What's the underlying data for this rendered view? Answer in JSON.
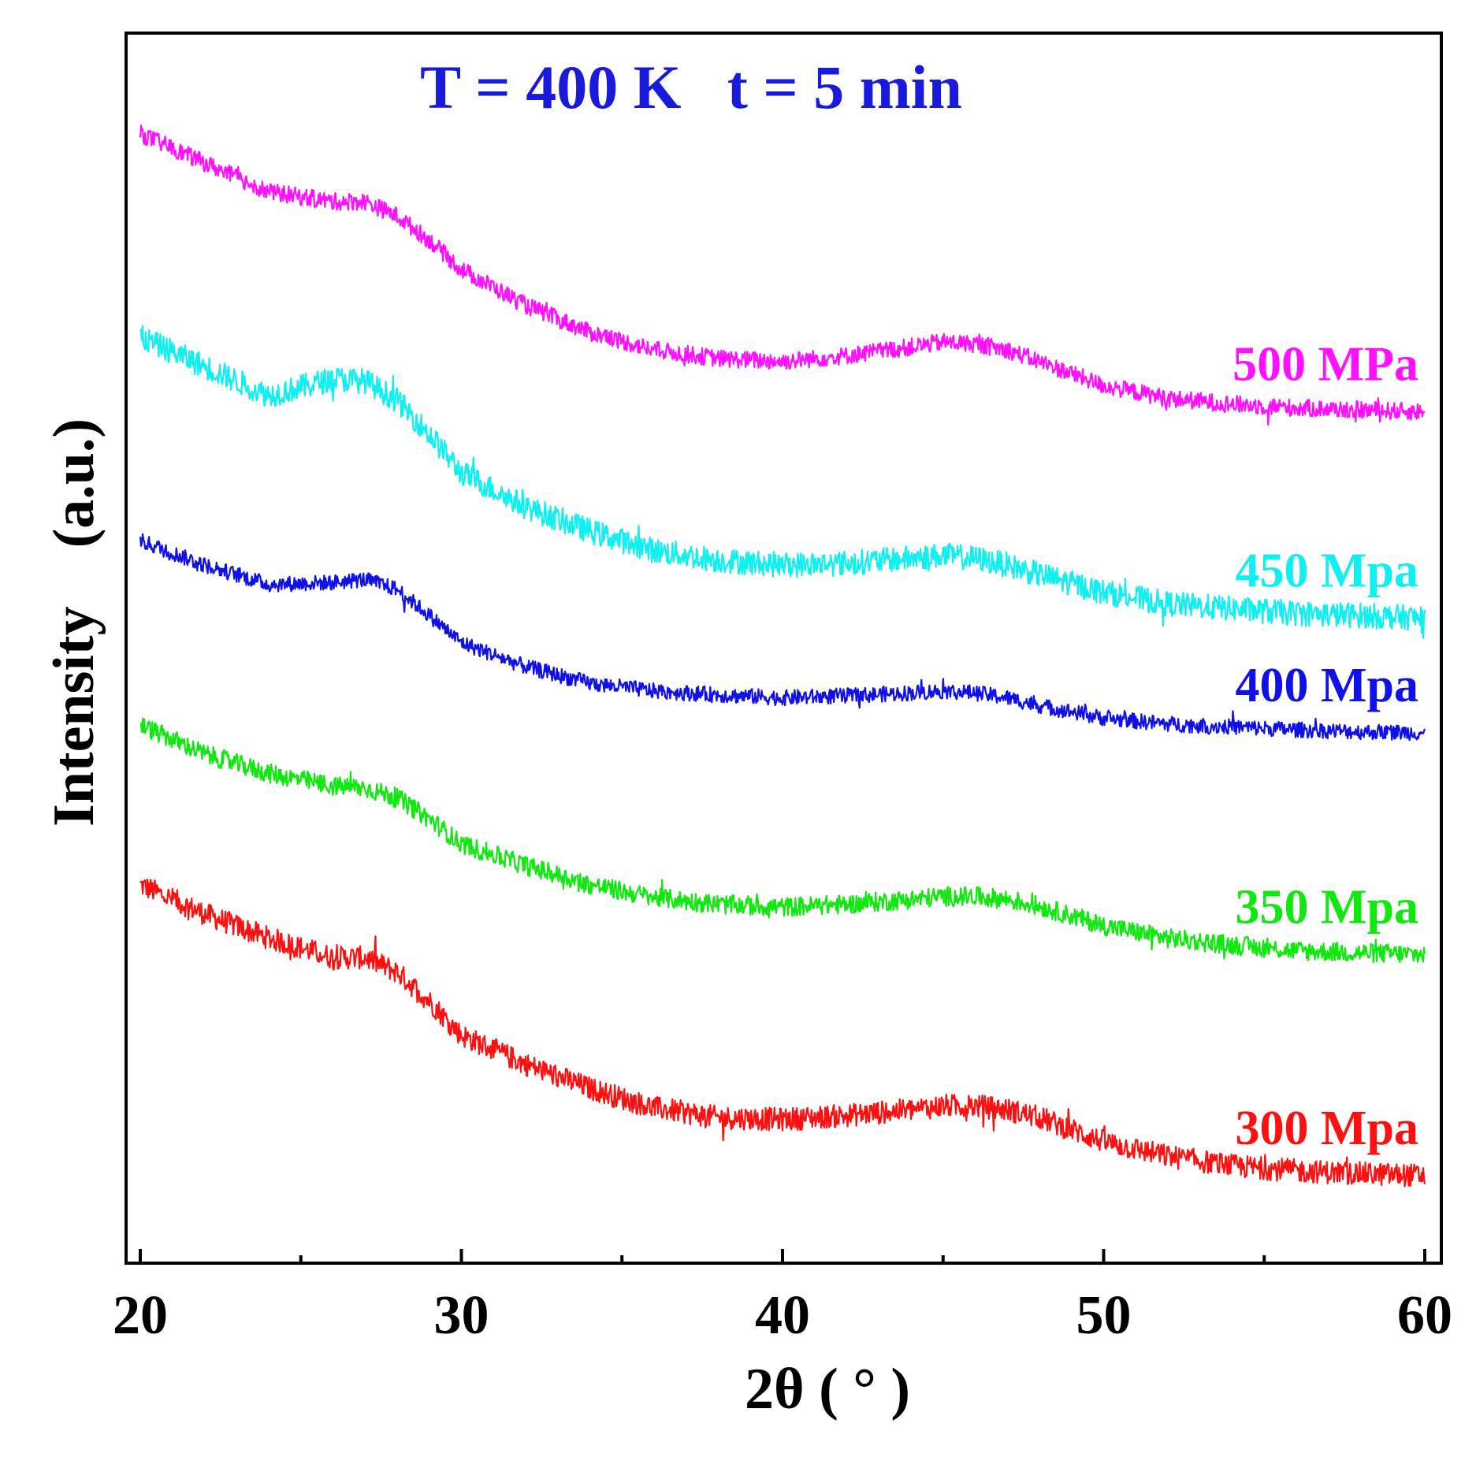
{
  "chart_data": {
    "type": "line",
    "title": "T = 400 K   t = 5 min",
    "xlabel": "2θ ( ° )",
    "ylabel": "Intensity    (a.u.)",
    "xlim": [
      20,
      60
    ],
    "ylim": [
      0,
      10
    ],
    "grid": false,
    "xticks": [
      20,
      30,
      40,
      50,
      60
    ],
    "xtick_labels": [
      "20",
      "30",
      "40",
      "50",
      "60"
    ],
    "minor_xticks": [
      25,
      35,
      45,
      55
    ],
    "yticks_shown": false,
    "colors": {
      "title": "#1a1adc",
      "axes": "#000000"
    },
    "series": [
      {
        "name": "300 Mpa",
        "color": "#ff1010",
        "noise": 0.12,
        "x": [
          20,
          22,
          24,
          26,
          27,
          28,
          29,
          30,
          32,
          34,
          36,
          38,
          40,
          42,
          44,
          45,
          46,
          47,
          48,
          50,
          52,
          54,
          56,
          58,
          60
        ],
        "y": [
          2.7,
          2.4,
          2.15,
          1.95,
          1.95,
          1.8,
          1.5,
          1.15,
          0.85,
          0.6,
          0.4,
          0.3,
          0.28,
          0.32,
          0.38,
          0.42,
          0.42,
          0.38,
          0.3,
          0.05,
          -0.1,
          -0.2,
          -0.25,
          -0.28,
          -0.3
        ]
      },
      {
        "name": "350 Mpa",
        "color": "#10e810",
        "noise": 0.1,
        "x": [
          20,
          22,
          24,
          26,
          27,
          28,
          29,
          30,
          32,
          34,
          36,
          38,
          40,
          42,
          44,
          45,
          46,
          47,
          48,
          50,
          52,
          54,
          56,
          58,
          60
        ],
        "y": [
          4.35,
          4.05,
          3.85,
          3.72,
          3.7,
          3.6,
          3.38,
          3.12,
          2.9,
          2.7,
          2.57,
          2.5,
          2.47,
          2.5,
          2.55,
          2.58,
          2.58,
          2.55,
          2.48,
          2.28,
          2.15,
          2.08,
          2.02,
          2.0,
          1.98
        ]
      },
      {
        "name": "400 Mpa",
        "color": "#1010e8",
        "noise": 0.08,
        "x": [
          20,
          22,
          24,
          26,
          27,
          28,
          29,
          30,
          32,
          34,
          36,
          38,
          40,
          42,
          44,
          45,
          46,
          47,
          48,
          50,
          52,
          54,
          56,
          58,
          60
        ],
        "y": [
          6.25,
          6.0,
          5.8,
          5.82,
          5.85,
          5.75,
          5.48,
          5.2,
          4.95,
          4.78,
          4.7,
          4.66,
          4.63,
          4.65,
          4.68,
          4.7,
          4.68,
          4.63,
          4.55,
          4.42,
          4.36,
          4.33,
          4.3,
          4.28,
          4.27
        ]
      },
      {
        "name": "450 Mpa",
        "color": "#10f0f0",
        "noise": 0.13,
        "x": [
          20,
          22,
          24,
          26,
          27,
          28,
          29,
          30,
          32,
          34,
          36,
          38,
          40,
          42,
          44,
          45,
          46,
          47,
          48,
          50,
          52,
          54,
          56,
          58,
          60
        ],
        "y": [
          8.35,
          8.05,
          7.75,
          7.92,
          7.9,
          7.7,
          7.35,
          6.95,
          6.6,
          6.35,
          6.15,
          6.05,
          6.0,
          6.02,
          6.07,
          6.1,
          6.07,
          6.0,
          5.9,
          5.72,
          5.6,
          5.55,
          5.5,
          5.48,
          5.45
        ]
      },
      {
        "name": "500 MPa",
        "color": "#ff10ff",
        "noise": 0.09,
        "x": [
          20,
          22,
          24,
          26,
          27,
          28,
          29,
          30,
          32,
          34,
          36,
          38,
          40,
          42,
          44,
          45,
          46,
          47,
          48,
          50,
          52,
          54,
          56,
          58,
          60
        ],
        "y": [
          10.45,
          10.15,
          9.85,
          9.75,
          9.75,
          9.6,
          9.35,
          9.05,
          8.68,
          8.4,
          8.22,
          8.13,
          8.1,
          8.16,
          8.25,
          8.3,
          8.28,
          8.22,
          8.1,
          7.85,
          7.72,
          7.66,
          7.62,
          7.6,
          7.58
        ]
      }
    ]
  }
}
